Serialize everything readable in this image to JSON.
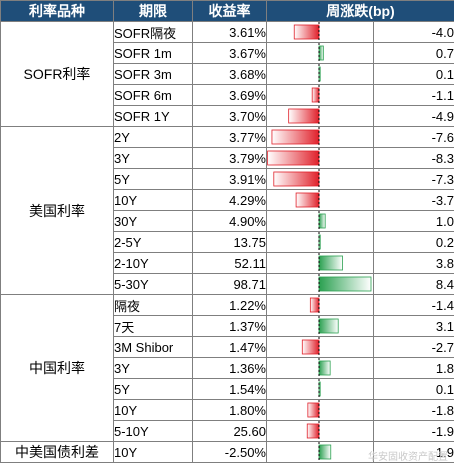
{
  "headers": {
    "category": "利率品种",
    "term": "期限",
    "yield": "收益率",
    "change": "周涨跌(bp)"
  },
  "colors": {
    "header_bg": "#1f4e79",
    "negative_bar": "#e0202a",
    "positive_bar": "#2aa050"
  },
  "bar_scale_max_bp": 8.4,
  "groups": [
    {
      "name": "SOFR利率",
      "rows": [
        {
          "term": "SOFR隔夜",
          "yield": "3.61%",
          "change": "-4.0",
          "change_value": -4.0
        },
        {
          "term": "SOFR 1m",
          "yield": "3.67%",
          "change": "0.7",
          "change_value": 0.7
        },
        {
          "term": "SOFR 3m",
          "yield": "3.68%",
          "change": "0.1",
          "change_value": 0.1
        },
        {
          "term": "SOFR 6m",
          "yield": "3.69%",
          "change": "-1.1",
          "change_value": -1.1
        },
        {
          "term": "SOFR 1Y",
          "yield": "3.70%",
          "change": "-4.9",
          "change_value": -4.9
        }
      ]
    },
    {
      "name": "美国利率",
      "rows": [
        {
          "term": "2Y",
          "yield": "3.77%",
          "change": "-7.6",
          "change_value": -7.6
        },
        {
          "term": "3Y",
          "yield": "3.79%",
          "change": "-8.3",
          "change_value": -8.3
        },
        {
          "term": "5Y",
          "yield": "3.91%",
          "change": "-7.3",
          "change_value": -7.3
        },
        {
          "term": "10Y",
          "yield": "4.29%",
          "change": "-3.7",
          "change_value": -3.7
        },
        {
          "term": "30Y",
          "yield": "4.90%",
          "change": "1.0",
          "change_value": 1.0
        },
        {
          "term": "2-5Y",
          "yield": "13.75",
          "change": "0.2",
          "change_value": 0.2
        },
        {
          "term": "2-10Y",
          "yield": "52.11",
          "change": "3.8",
          "change_value": 3.8
        },
        {
          "term": "5-30Y",
          "yield": "98.71",
          "change": "8.4",
          "change_value": 8.4
        }
      ]
    },
    {
      "name": "中国利率",
      "rows": [
        {
          "term": "隔夜",
          "yield": "1.22%",
          "change": "-1.4",
          "change_value": -1.4
        },
        {
          "term": "7天",
          "yield": "1.37%",
          "change": "3.1",
          "change_value": 3.1
        },
        {
          "term": "3M Shibor",
          "yield": "1.47%",
          "change": "-2.7",
          "change_value": -2.7
        },
        {
          "term": "3Y",
          "yield": "1.36%",
          "change": "1.8",
          "change_value": 1.8
        },
        {
          "term": "5Y",
          "yield": "1.54%",
          "change": "0.1",
          "change_value": 0.1
        },
        {
          "term": "10Y",
          "yield": "1.80%",
          "change": "-1.8",
          "change_value": -1.8
        },
        {
          "term": "5-10Y",
          "yield": "25.60",
          "change": "-1.9",
          "change_value": -1.9
        }
      ]
    },
    {
      "name": "中美国债利差",
      "rows": [
        {
          "term": "10Y",
          "yield": "-2.50%",
          "change": "1.9",
          "change_value": 1.9
        }
      ]
    }
  ],
  "watermark": "华安固收资产配置"
}
